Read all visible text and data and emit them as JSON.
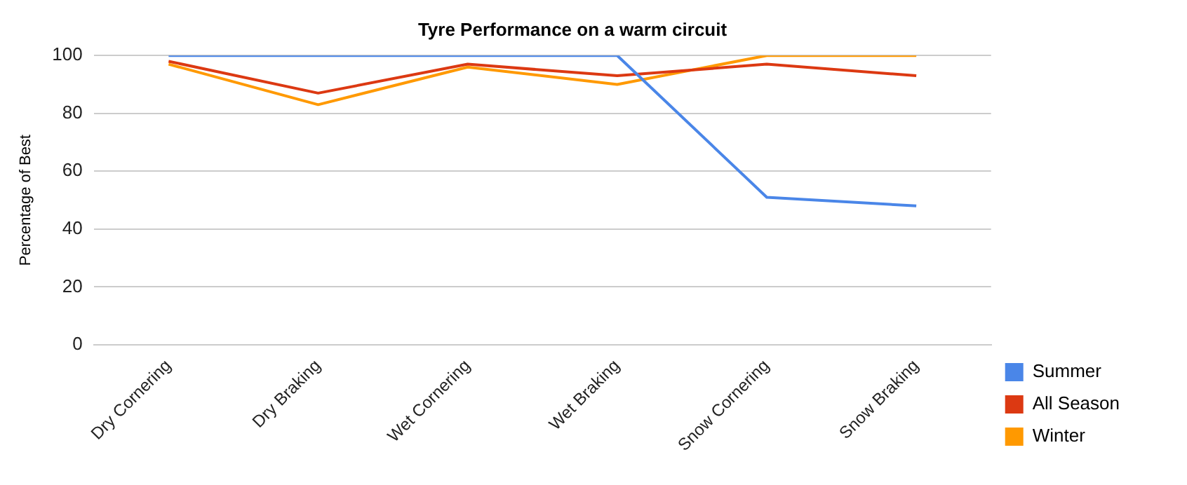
{
  "chart_data": {
    "type": "line",
    "title": "Tyre Performance on a warm circuit",
    "ylabel": "Percentage of Best",
    "categories": [
      "Dry Cornering",
      "Dry Braking",
      "Wet Cornering",
      "Wet Braking",
      "Snow Cornering",
      "Snow Braking"
    ],
    "series": [
      {
        "name": "Summer",
        "color": "#4a86e8",
        "values": [
          100,
          100,
          100,
          100,
          51,
          48
        ]
      },
      {
        "name": "All Season",
        "color": "#dc3912",
        "values": [
          98,
          87,
          97,
          93,
          97,
          93
        ]
      },
      {
        "name": "Winter",
        "color": "#ff9900",
        "values": [
          97,
          83,
          96,
          90,
          100,
          100
        ]
      }
    ],
    "ylim": [
      0,
      100
    ],
    "yticks": [
      0,
      20,
      40,
      60,
      80,
      100
    ],
    "grid": "y",
    "legend": "right",
    "marker": "none"
  }
}
